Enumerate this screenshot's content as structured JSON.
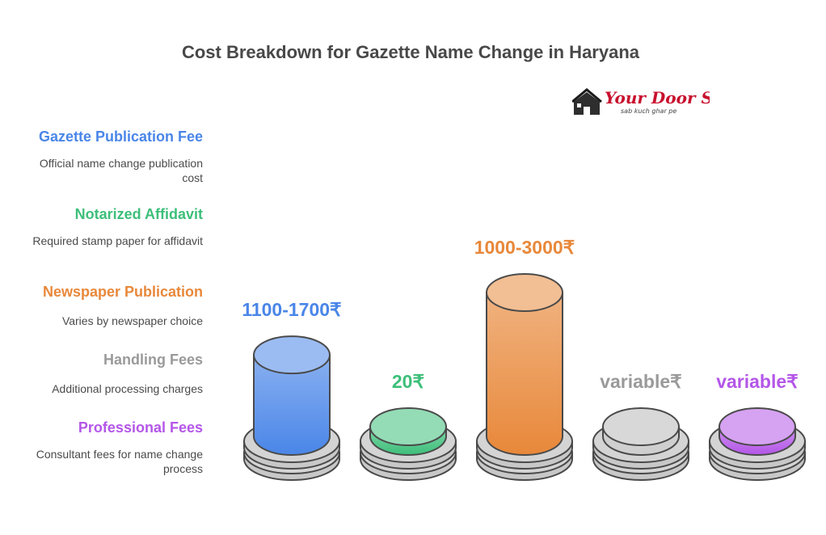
{
  "title": "Cost Breakdown for Gazette Name Change in Haryana",
  "logo": {
    "brand_text": "Your Door Step",
    "tagline": "sab kuch ghar pe",
    "icon": "house-icon",
    "colors": {
      "house": "#3a3a3a",
      "text": "#c8102e"
    }
  },
  "legend": [
    {
      "title": "Gazette Publication Fee",
      "desc": "Official name change publication cost",
      "color": "#4a86e8"
    },
    {
      "title": "Notarized Affidavit",
      "desc": "Required stamp paper for affidavit",
      "color": "#3dbf7a"
    },
    {
      "title": "Newspaper Publication",
      "desc": "Varies by newspaper choice",
      "color": "#e8883a"
    },
    {
      "title": "Handling Fees",
      "desc": "Additional processing charges",
      "color": "#9a9a9a"
    },
    {
      "title": "Professional Fees",
      "desc": "Consultant fees for name change process",
      "color": "#b456e8"
    }
  ],
  "chart_data": {
    "type": "bar",
    "categories": [
      "Gazette Publication Fee",
      "Notarized Affidavit",
      "Newspaper Publication",
      "Handling Fees",
      "Professional Fees"
    ],
    "values": [
      1700,
      20,
      3000,
      null,
      null
    ],
    "labels": [
      "1100-1700₹",
      "20₹",
      "1000-3000₹",
      "variable₹",
      "variable₹"
    ],
    "title": "Cost Breakdown for Gazette Name Change in Haryana",
    "colors": [
      "#4a86e8",
      "#3dbf7a",
      "#e8883a",
      "#9a9a9a",
      "#b456e8"
    ]
  }
}
